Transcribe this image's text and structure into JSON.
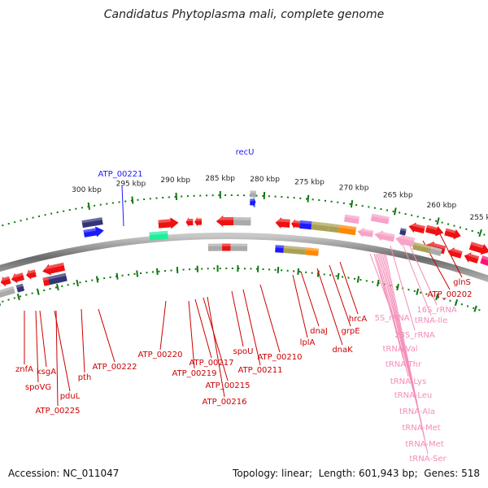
{
  "title": "Candidatus Phytoplasma mali, complete genome",
  "footer": {
    "accession_label": "Accession:",
    "accession": "NC_011047",
    "topology_label": "Topology:",
    "topology": "linear",
    "length_label": "Length:",
    "length": "601,943 bp",
    "genes_label": "Genes:",
    "genes": "518"
  },
  "scale_ticks": [
    "255 kbp",
    "260 kbp",
    "265 kbp",
    "270 kbp",
    "275 kbp",
    "280 kbp",
    "285 kbp",
    "290 kbp",
    "295 kbp",
    "300 kbp"
  ],
  "labels_top": [
    {
      "text": "recU",
      "color": "#1a1aff"
    },
    {
      "text": "ATP_00221",
      "color": "#1a1aff"
    }
  ],
  "labels_red": [
    "znfA",
    "ksgA",
    "spoVG",
    "pduL",
    "ATP_00225",
    "pth",
    "ATP_00222",
    "ATP_00220",
    "ATP_00219",
    "ATP_00217",
    "ATP_00215",
    "ATP_00216",
    "spoU",
    "ATP_00211",
    "ATP_00210",
    "lplA",
    "dnaJ",
    "dnaK",
    "grpE",
    "hrcA",
    "ATP_00202",
    "glnS"
  ],
  "labels_pink": [
    "5S_rRNA",
    "16S_rRNA",
    "tRNA-Ile",
    "23S_rRNA",
    "tRNA-Val",
    "tRNA-Thr",
    "tRNA-Lys",
    "tRNA-Leu",
    "tRNA-Ala",
    "tRNA-Met",
    "tRNA-Met",
    "tRNA-Ser"
  ],
  "colors": {
    "gene_red": "#ee1111",
    "gene_blue": "#1a1aff",
    "gene_navy": "#333377",
    "gene_pink": "#f7a3c8",
    "gene_gray": "#aaaaaa",
    "gene_olive": "#aaa055",
    "gene_orange": "#ff8800",
    "gene_teal": "#22ee99",
    "gene_magenta": "#ff1177",
    "tick_green": "#117711",
    "label_red": "#cc0000",
    "label_pink": "#f48cb8",
    "backbone": "#808080"
  }
}
